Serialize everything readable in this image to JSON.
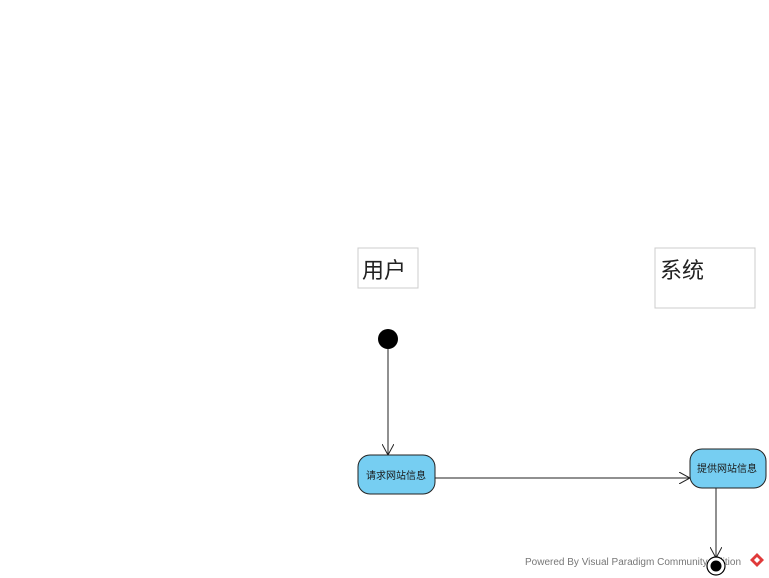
{
  "lanes": {
    "user": {
      "label": "用户"
    },
    "system": {
      "label": "系统"
    }
  },
  "states": {
    "request": {
      "label": "请求网站信息"
    },
    "provide": {
      "label": "提供网站信息"
    }
  },
  "footer": {
    "text": "Powered By  Visual Paradigm Community Edition"
  },
  "colors": {
    "state_fill": "#76cef2",
    "stroke": "#222222",
    "lane_border": "#cccccc",
    "logo": "#e03a3a"
  }
}
